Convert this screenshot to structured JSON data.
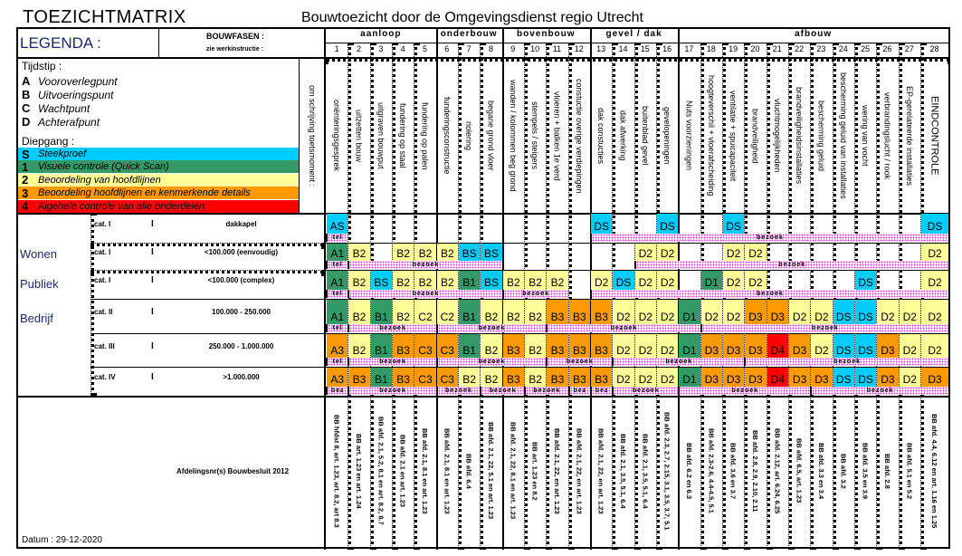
{
  "title": "TOEZICHTMATRIX",
  "subtitle": "Bouwtoezicht door de Omgevingsdienst regio Utrecht",
  "legend": {
    "label": "LEGENDA :",
    "bouwfasen": "BOUWFASEN :",
    "werkinstructie": "zie werkinstructie :",
    "omschrijving": "om schrijving toetsmoment :",
    "tijdstip_title": "Tijdstip :",
    "tijdstip": [
      {
        "k": "A",
        "v": "Vooroverlegpunt"
      },
      {
        "k": "B",
        "v": "Uitvoeringspunt"
      },
      {
        "k": "C",
        "v": "Wachtpunt"
      },
      {
        "k": "D",
        "v": "Achterafpunt"
      }
    ],
    "diepgang_title": "Diepgang :",
    "diepgang": [
      {
        "k": "S",
        "v": "Steekproef",
        "color": "#00ccff"
      },
      {
        "k": "1",
        "v": "Visuele controle (Quick Scan)",
        "color": "#339966"
      },
      {
        "k": "2",
        "v": "Beoordeling van hoofdlijnen",
        "color": "#ffff99"
      },
      {
        "k": "3",
        "v": "Beoordeling hoofdlijnen en kenmerkende details",
        "color": "#ff9900"
      },
      {
        "k": "4",
        "v": "Algehele controle van alle onderdelen",
        "color": "#ff0000"
      }
    ]
  },
  "groups": [
    {
      "label": "aanloop",
      "from": 1,
      "to": 5
    },
    {
      "label": "onderbouw",
      "from": 6,
      "to": 8
    },
    {
      "label": "bovenbouw",
      "from": 9,
      "to": 12
    },
    {
      "label": "gevel / dak",
      "from": 13,
      "to": 16
    },
    {
      "label": "afbouw",
      "from": 17,
      "to": 28
    }
  ],
  "columns": [
    {
      "num": "1",
      "desc": "oriënteringsgesprek",
      "article": "BB hfdst 8, art. 1.23, art. 8.2, art 8.3"
    },
    {
      "num": "2",
      "desc": "uitzetten bouw",
      "article": "BB art. 1.23 en art. 1.24"
    },
    {
      "num": "3",
      "desc": "uitgraven bouwput",
      "article": "BB afd. 2.1, 5.2, 8.1 en art. 8.2, 8.7"
    },
    {
      "num": "4",
      "desc": "fundering op staal",
      "article": "BB afd. 2.1 en art. 1.23"
    },
    {
      "num": "5",
      "desc": "fundering op palen",
      "article": "BB afd. 2.1, 8.1 en art. 1.23"
    },
    {
      "num": "6",
      "desc": "funderingsconstructie",
      "article": "BB afd. 2.1, 8.1 en art. 1.23"
    },
    {
      "num": "7",
      "desc": "riolering",
      "article": "BB afd. 6.4"
    },
    {
      "num": "8",
      "desc": "begane grond vloer",
      "article": "BB afd. 2.1, 22, 5.1 en art. 1.23"
    },
    {
      "num": "9",
      "desc": "wanden / kolommen beg grond",
      "article": "BB afd. 2.1, 22, 8.1 en art. 1.23"
    },
    {
      "num": "10",
      "desc": "stempels / steigers",
      "article": "BB art. 1.23 en 8.2"
    },
    {
      "num": "11",
      "desc": "vloeren + balken 1e verd",
      "article": "BB afd. 2.1, 22, en art. 1.23"
    },
    {
      "num": "12",
      "desc": "constuctie overige verdiepingen",
      "article": "BB afd. 2.1, 22, en art. 1.23"
    },
    {
      "num": "13",
      "desc": "dak constucties",
      "article": "BB afd. 2.1, 22, en art. 1.23"
    },
    {
      "num": "14",
      "desc": "dak afwerking",
      "article": "BB afd. 2.1, 3.5, 5.1, 6.4"
    },
    {
      "num": "15",
      "desc": "buitenblad gevel",
      "article": "BB afd. 2.1, 3.5, 5.1, 6.4"
    },
    {
      "num": "16",
      "desc": "gevelopeningen",
      "article": "BB afd. 2.3, 2.7, 2.15, 3.1, 3.5, 3.7, 5.1"
    },
    {
      "num": "17",
      "desc": "Nuts voorzieningen",
      "article": "BB afd. 6.2 en 6.3"
    },
    {
      "num": "18",
      "desc": "hoogteverschil + vloerafscheiding",
      "article": "BB afd. 2.3-2.6, 4.4-4.5, 5.1"
    },
    {
      "num": "19",
      "desc": "ventilatie + spuicapaciteit",
      "article": "BB afd. 3.6 en 3.7"
    },
    {
      "num": "20",
      "desc": "brandveiligheid",
      "article": "BB afd. 2.8, 2.9, 2.10, 2.11"
    },
    {
      "num": "21",
      "desc": "vluchtmogelijkheden",
      "article": "BB afd. 2.12, art. 6.24, 6.25"
    },
    {
      "num": "22",
      "desc": "brandveiligheidsinstallaties",
      "article": "BB afd. 6.5, art. 1.23"
    },
    {
      "num": "23",
      "desc": "bescherming geluid",
      "article": "BB afd. 3.3 en 3.4"
    },
    {
      "num": "24",
      "desc": "bescherming geluid van installaties",
      "article": "BB afd. 3.2"
    },
    {
      "num": "25",
      "desc": "wering van vocht",
      "article": "BB afd. 3.5 en 3.9"
    },
    {
      "num": "26",
      "desc": "verbrandingslucht / rook",
      "article": "BB afd. 2.8"
    },
    {
      "num": "27",
      "desc": "EP-gerelateerde installaties",
      "article": "BB afd. 5.1 en 5.2"
    },
    {
      "num": "28",
      "desc": "EINDCONTROLE",
      "article": "BB afd. 4.4, 6.12 en art. 1.16 en 1.25"
    }
  ],
  "functions": [
    "Wonen",
    "Publiek",
    "Bedrijf"
  ],
  "rows": [
    {
      "cat": "cat. I",
      "mark": "I",
      "desc": "dakkapel",
      "codes": [
        "AS",
        "",
        "",
        "",
        "",
        "",
        "",
        "",
        "",
        "",
        "",
        "",
        "DS",
        "",
        "",
        "DS",
        "",
        "",
        "DS",
        "",
        "",
        "",
        "",
        "",
        "",
        "",
        "",
        "DS"
      ],
      "bars": [
        {
          "from": 1,
          "to": 1,
          "label": "tel"
        },
        {
          "from": 13,
          "to": 28,
          "label": "bezoek"
        }
      ]
    },
    {
      "cat": "cat. I",
      "mark": "I",
      "desc": "<100.000 (eenvoudig)",
      "codes": [
        "A1",
        "B2",
        "",
        "B2",
        "B2",
        "B2",
        "BS",
        "BS",
        "",
        "",
        "",
        "",
        "",
        "",
        "D2",
        "D2",
        "",
        "",
        "D2",
        "D2",
        "",
        "",
        "",
        "",
        "",
        "",
        "",
        "D2"
      ],
      "bars": [
        {
          "from": 1,
          "to": 1,
          "label": "tel"
        },
        {
          "from": 2,
          "to": 8,
          "label": "bezoek"
        },
        {
          "from": 15,
          "to": 28,
          "label": "bezoek"
        }
      ]
    },
    {
      "cat": "cat. I",
      "mark": "I",
      "desc": "<100.000 (complex)",
      "codes": [
        "A1",
        "B2",
        "BS",
        "B2",
        "B2",
        "B2",
        "B1",
        "BS",
        "B2",
        "B2",
        "B2",
        "",
        "D2",
        "DS",
        "D2",
        "D2",
        "",
        "D1",
        "D2",
        "D2",
        "",
        "",
        "",
        "",
        "DS",
        "",
        "",
        "D2"
      ],
      "bars": [
        {
          "from": 1,
          "to": 1,
          "label": "tel"
        },
        {
          "from": 2,
          "to": 8,
          "label": "bezoek"
        },
        {
          "from": 9,
          "to": 11,
          "label": "bezoek"
        },
        {
          "from": 13,
          "to": 28,
          "label": "bezoek"
        }
      ]
    },
    {
      "cat": "cat. II",
      "mark": "I",
      "desc": "100.000 - 250.000",
      "codes": [
        "A1",
        "B2",
        "B1",
        "B2",
        "C2",
        "C2",
        "B1",
        "B2",
        "B2",
        "B2",
        "B3",
        "B3",
        "B3",
        "D2",
        "D2",
        "D2",
        "D1",
        "D2",
        "D2",
        "D3",
        "D3",
        "D2",
        "D2",
        "DS",
        "DS",
        "D2",
        "D2",
        "D2"
      ],
      "bars": [
        {
          "from": 1,
          "to": 1,
          "label": "tel"
        },
        {
          "from": 2,
          "to": 5,
          "label": "bezoek"
        },
        {
          "from": 6,
          "to": 10,
          "label": "bezoek"
        },
        {
          "from": 11,
          "to": 17,
          "label": "bezoek"
        },
        {
          "from": 18,
          "to": 28,
          "label": "bezoek"
        }
      ]
    },
    {
      "cat": "cat. III",
      "mark": "I",
      "desc": "250.000 - 1.000.000",
      "codes": [
        "A3",
        "B2",
        "B1",
        "B3",
        "C3",
        "C3",
        "B1",
        "B2",
        "B3",
        "B2",
        "B3",
        "B3",
        "B3",
        "D2",
        "D2",
        "D2",
        "D1",
        "D3",
        "D3",
        "D3",
        "D4",
        "D3",
        "D2",
        "DS",
        "DS",
        "D3",
        "D2",
        "D2"
      ],
      "bars": [
        {
          "from": 1,
          "to": 1,
          "label": "tel"
        },
        {
          "from": 2,
          "to": 5,
          "label": "bezoek"
        },
        {
          "from": 6,
          "to": 10,
          "label": "bezoek"
        },
        {
          "from": 11,
          "to": 13,
          "label": "bezoek"
        },
        {
          "from": 14,
          "to": 19,
          "label": "bezoek"
        },
        {
          "from": 20,
          "to": 28,
          "label": "bezoek"
        }
      ]
    },
    {
      "cat": "cat. IV",
      "mark": "I",
      "desc": ">1.000.000",
      "codes": [
        "A3",
        "B3",
        "B1",
        "B3",
        "C3",
        "C3",
        "B2",
        "B2",
        "B3",
        "B2",
        "B3",
        "B3",
        "B3",
        "D2",
        "D2",
        "D2",
        "D1",
        "D3",
        "D3",
        "D3",
        "D4",
        "D3",
        "D3",
        "DS",
        "DS",
        "D3",
        "D2",
        "D3"
      ],
      "bars": [
        {
          "from": 1,
          "to": 1,
          "label": "bez"
        },
        {
          "from": 2,
          "to": 5,
          "label": "bezoek"
        },
        {
          "from": 6,
          "to": 7,
          "label": "bezoek"
        },
        {
          "from": 8,
          "to": 9,
          "label": "bezoek"
        },
        {
          "from": 10,
          "to": 11,
          "label": "bezoek"
        },
        {
          "from": 12,
          "to": 12,
          "label": "bez"
        },
        {
          "from": 13,
          "to": 13,
          "label": "bez"
        },
        {
          "from": 14,
          "to": 16,
          "label": "bezoek"
        },
        {
          "from": 17,
          "to": 22,
          "label": "bezoek"
        },
        {
          "from": 23,
          "to": 28,
          "label": "bezoek"
        }
      ]
    }
  ],
  "articles_label": "Afdelingsnr(s) Bouwbesluit 2012",
  "datum": "Datum : 29-12-2020"
}
